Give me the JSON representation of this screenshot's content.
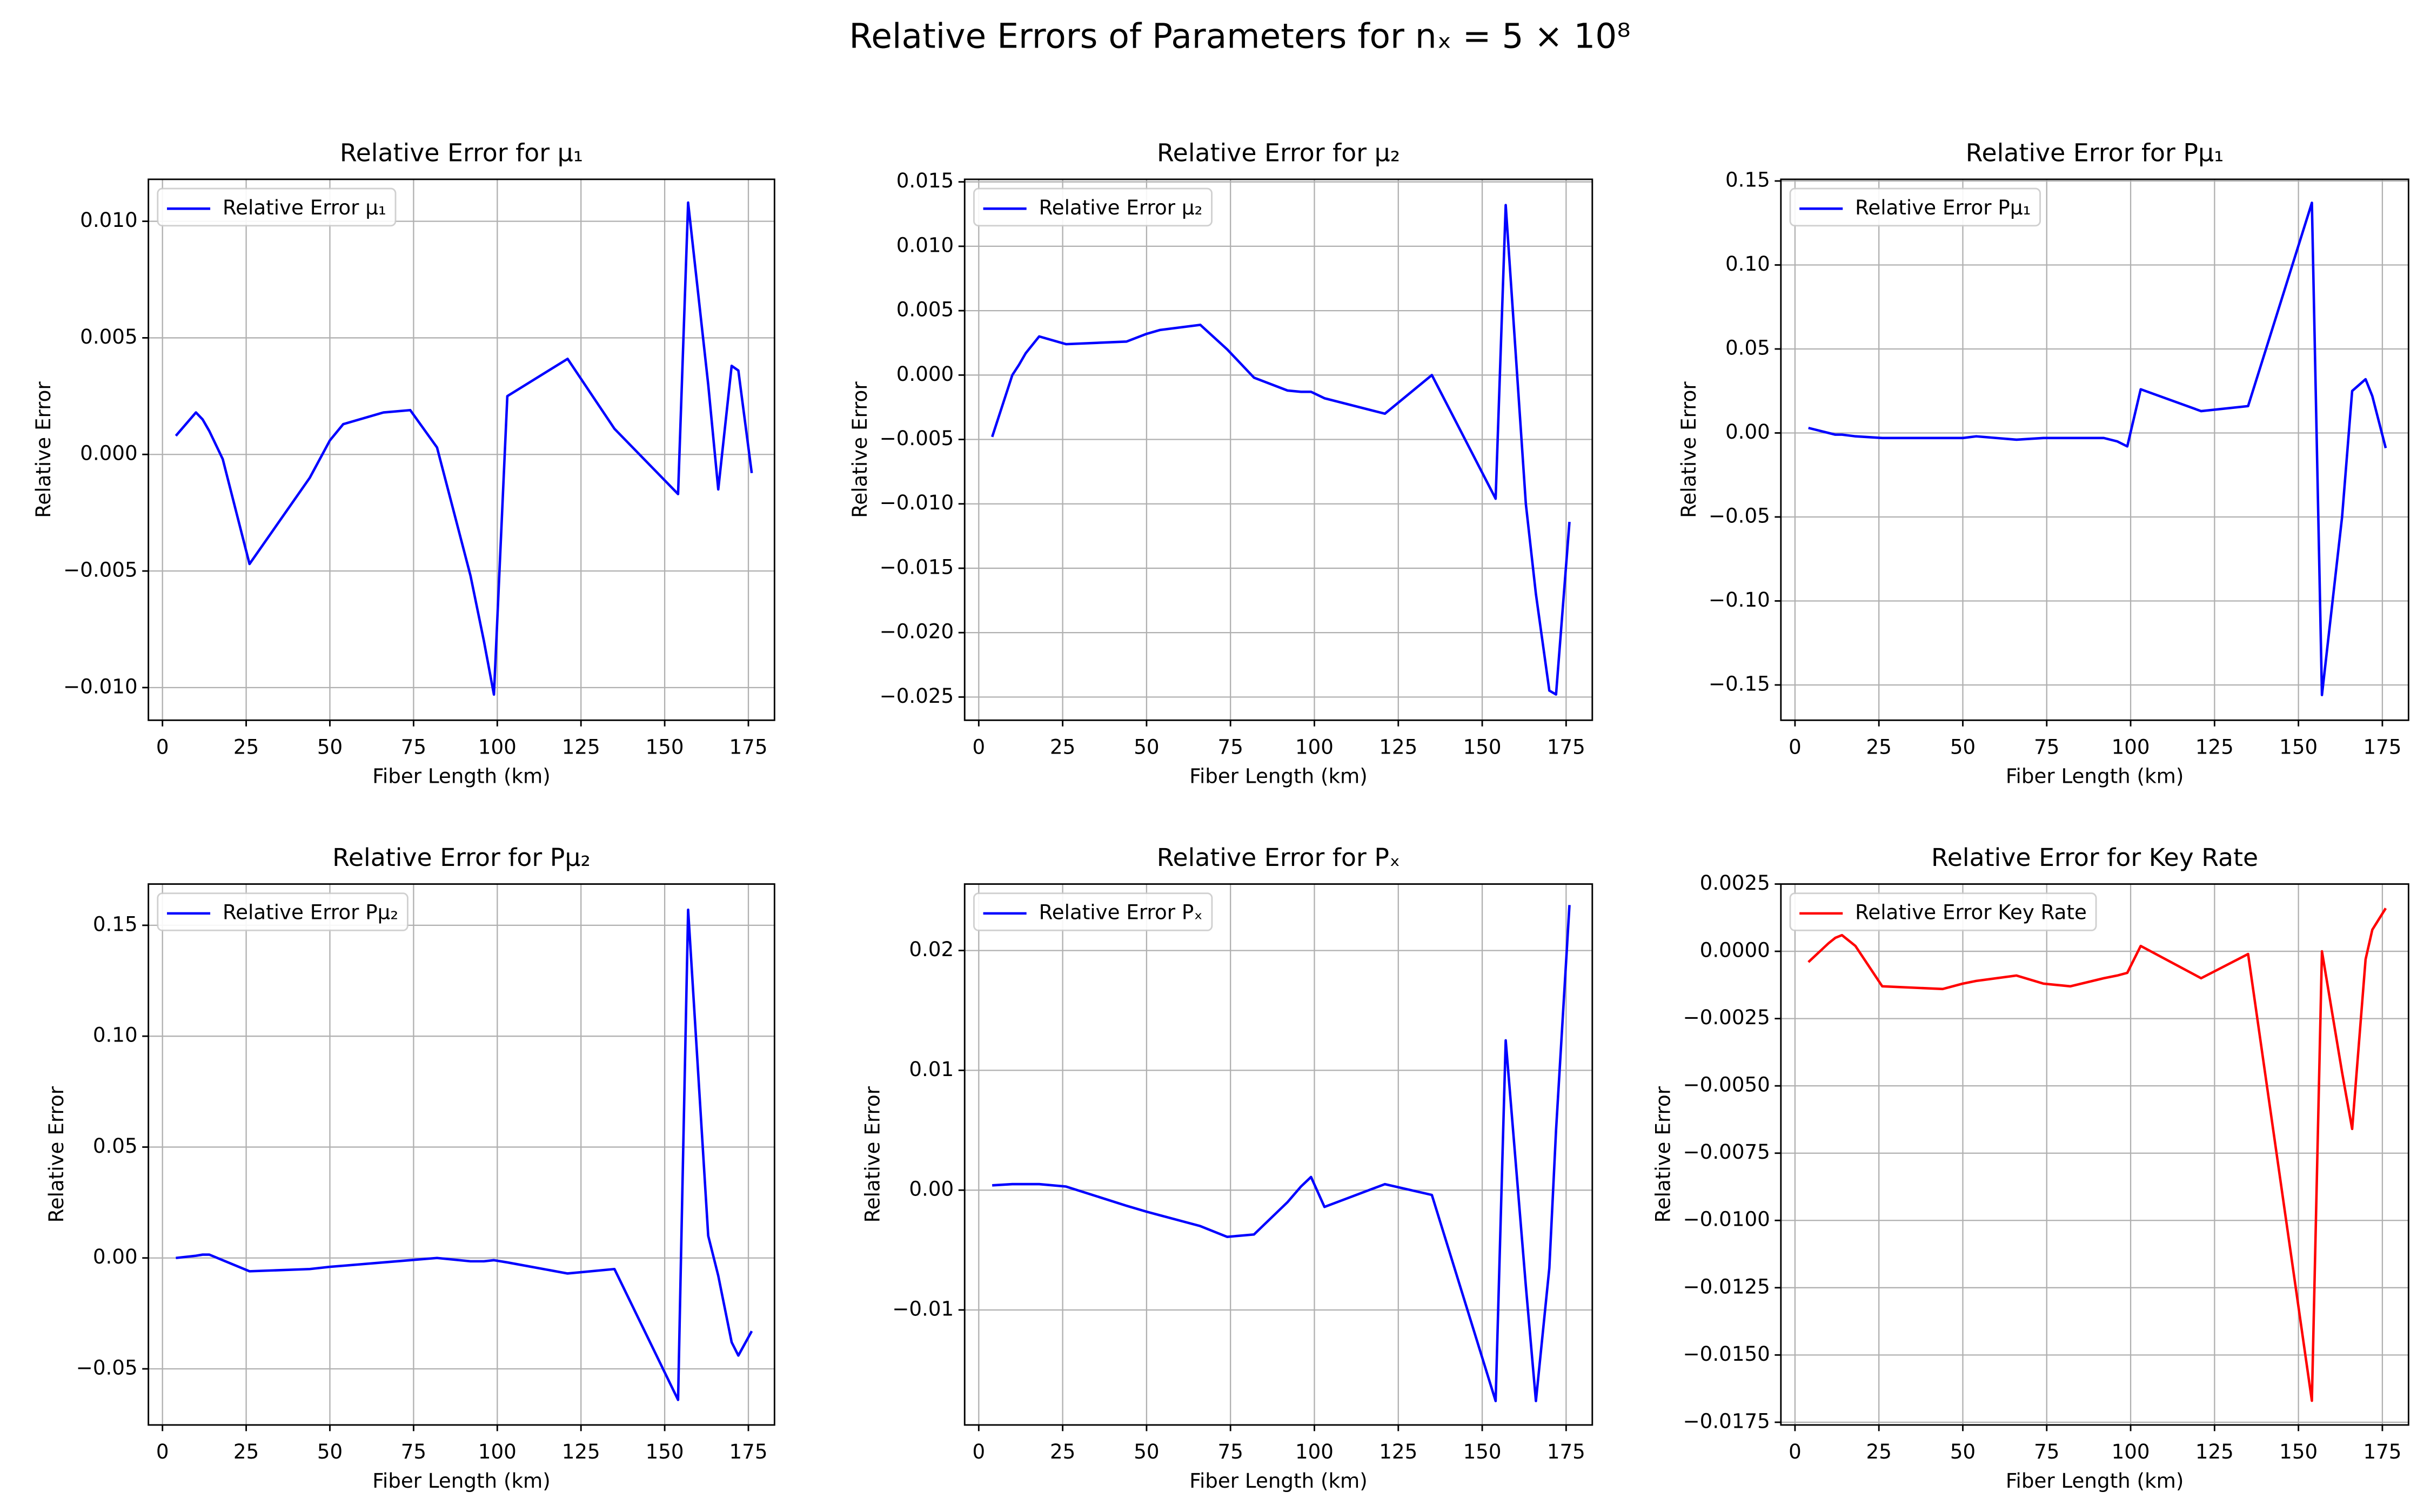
{
  "title": "Relative Errors of Parameters for nₓ = 5 × 10⁸",
  "chart_data": [
    {
      "type": "line",
      "title": "Relative Error for μ₁",
      "xlabel": "Fiber Length (km)",
      "ylabel": "Relative Error",
      "x": [
        4,
        10,
        12,
        14,
        18,
        26,
        44,
        50,
        54,
        66,
        74,
        82,
        92,
        96,
        99,
        103,
        121,
        135,
        154,
        157,
        163,
        166,
        170,
        172,
        176
      ],
      "series": [
        {
          "name": "Relative Error μ₁",
          "color": "#0000ff",
          "values": [
            0.0008,
            0.0018,
            0.0015,
            0.001,
            -0.0002,
            -0.0047,
            -0.001,
            0.0006,
            0.0013,
            0.0018,
            0.0019,
            0.0003,
            -0.0052,
            -0.008,
            -0.0103,
            0.0025,
            0.0041,
            0.0011,
            -0.0017,
            0.0108,
            0.003,
            -0.0015,
            0.0038,
            0.0036,
            -0.0008
          ]
        }
      ],
      "xlim": [
        -4.2,
        182.8
      ],
      "ylim": [
        -0.0114,
        0.0118
      ],
      "xticks": [
        0,
        25,
        50,
        75,
        100,
        125,
        150,
        175
      ],
      "yticks": [
        {
          "value": -0.01,
          "label": "−0.010"
        },
        {
          "value": -0.005,
          "label": "−0.005"
        },
        {
          "value": 0,
          "label": "0.000"
        },
        {
          "value": 0.005,
          "label": "0.005"
        },
        {
          "value": 0.01,
          "label": "0.010"
        }
      ],
      "grid": true,
      "legend": "upper left"
    },
    {
      "type": "line",
      "title": "Relative Error for μ₂",
      "xlabel": "Fiber Length (km)",
      "ylabel": "Relative Error",
      "x": [
        4,
        10,
        12,
        14,
        18,
        26,
        44,
        50,
        54,
        66,
        74,
        82,
        92,
        96,
        99,
        103,
        121,
        135,
        154,
        157,
        163,
        166,
        170,
        172,
        176
      ],
      "series": [
        {
          "name": "Relative Error μ₂",
          "color": "#0000ff",
          "values": [
            -0.0048,
            0,
            0.0008,
            0.0017,
            0.003,
            0.0024,
            0.0026,
            0.0032,
            0.0035,
            0.0039,
            0.002,
            -0.0002,
            -0.0012,
            -0.0013,
            -0.0013,
            -0.0018,
            -0.003,
            0,
            -0.0096,
            0.0132,
            -0.01,
            -0.017,
            -0.0245,
            -0.0248,
            -0.0114
          ]
        }
      ],
      "xlim": [
        -4.2,
        182.8
      ],
      "ylim": [
        -0.0268,
        0.0152
      ],
      "xticks": [
        0,
        25,
        50,
        75,
        100,
        125,
        150,
        175
      ],
      "yticks": [
        {
          "value": -0.025,
          "label": "−0.025"
        },
        {
          "value": -0.02,
          "label": "−0.020"
        },
        {
          "value": -0.015,
          "label": "−0.015"
        },
        {
          "value": -0.01,
          "label": "−0.010"
        },
        {
          "value": -0.005,
          "label": "−0.005"
        },
        {
          "value": 0,
          "label": "0.000"
        },
        {
          "value": 0.005,
          "label": "0.005"
        },
        {
          "value": 0.01,
          "label": "0.010"
        },
        {
          "value": 0.015,
          "label": "0.015"
        }
      ],
      "grid": true,
      "legend": "upper left"
    },
    {
      "type": "line",
      "title": "Relative Error for Pμ₁",
      "xlabel": "Fiber Length (km)",
      "ylabel": "Relative Error",
      "x": [
        4,
        10,
        12,
        14,
        18,
        26,
        44,
        50,
        54,
        66,
        74,
        82,
        92,
        96,
        99,
        103,
        121,
        135,
        154,
        157,
        163,
        166,
        170,
        172,
        176
      ],
      "series": [
        {
          "name": "Relative Error Pμ₁",
          "color": "#0000ff",
          "values": [
            0.003,
            0,
            -0.001,
            -0.001,
            -0.002,
            -0.003,
            -0.003,
            -0.003,
            -0.002,
            -0.004,
            -0.003,
            -0.003,
            -0.003,
            -0.005,
            -0.008,
            0.026,
            0.013,
            0.016,
            0.137,
            -0.156,
            -0.05,
            0.025,
            0.032,
            0.022,
            -0.009
          ]
        }
      ],
      "xlim": [
        -4.2,
        182.8
      ],
      "ylim": [
        -0.171,
        0.151
      ],
      "xticks": [
        0,
        25,
        50,
        75,
        100,
        125,
        150,
        175
      ],
      "yticks": [
        {
          "value": -0.15,
          "label": "−0.15"
        },
        {
          "value": -0.1,
          "label": "−0.10"
        },
        {
          "value": -0.05,
          "label": "−0.05"
        },
        {
          "value": 0,
          "label": "0.00"
        },
        {
          "value": 0.05,
          "label": "0.05"
        },
        {
          "value": 0.1,
          "label": "0.10"
        },
        {
          "value": 0.15,
          "label": "0.15"
        }
      ],
      "grid": true,
      "legend": "upper left"
    },
    {
      "type": "line",
      "title": "Relative Error for Pμ₂",
      "xlabel": "Fiber Length (km)",
      "ylabel": "Relative Error",
      "x": [
        4,
        10,
        12,
        14,
        18,
        26,
        44,
        50,
        54,
        66,
        74,
        82,
        92,
        96,
        99,
        103,
        121,
        135,
        154,
        157,
        163,
        166,
        170,
        172,
        176
      ],
      "series": [
        {
          "name": "Relative Error Pμ₂",
          "color": "#0000ff",
          "values": [
            0,
            0.001,
            0.0015,
            0.0015,
            -0.001,
            -0.006,
            -0.005,
            -0.004,
            -0.0035,
            -0.002,
            -0.001,
            0,
            -0.0015,
            -0.0015,
            -0.001,
            -0.002,
            -0.007,
            -0.005,
            -0.064,
            0.157,
            0.01,
            -0.008,
            -0.038,
            -0.044,
            -0.033
          ]
        }
      ],
      "xlim": [
        -4.2,
        182.8
      ],
      "ylim": [
        -0.0753,
        0.1686
      ],
      "xticks": [
        0,
        25,
        50,
        75,
        100,
        125,
        150,
        175
      ],
      "yticks": [
        {
          "value": -0.05,
          "label": "−0.05"
        },
        {
          "value": 0,
          "label": "0.00"
        },
        {
          "value": 0.05,
          "label": "0.05"
        },
        {
          "value": 0.1,
          "label": "0.10"
        },
        {
          "value": 0.15,
          "label": "0.15"
        }
      ],
      "grid": true,
      "legend": "upper left"
    },
    {
      "type": "line",
      "title": "Relative Error for Pₓ",
      "xlabel": "Fiber Length (km)",
      "ylabel": "Relative Error",
      "x": [
        4,
        10,
        12,
        14,
        18,
        26,
        44,
        50,
        54,
        66,
        74,
        82,
        92,
        96,
        99,
        103,
        121,
        135,
        154,
        157,
        163,
        166,
        170,
        172,
        176
      ],
      "series": [
        {
          "name": "Relative Error Pₓ",
          "color": "#0000ff",
          "values": [
            0.0004,
            0.0005,
            0.0005,
            0.0005,
            0.0005,
            0.0003,
            -0.0013,
            -0.0018,
            -0.0021,
            -0.003,
            -0.0039,
            -0.0037,
            -0.001,
            0.0003,
            0.0011,
            -0.0014,
            0.0005,
            -0.0004,
            -0.0176,
            0.0125,
            -0.008,
            -0.0176,
            -0.0065,
            0.005,
            0.0238
          ]
        }
      ],
      "xlim": [
        -4.2,
        182.8
      ],
      "ylim": [
        -0.0196,
        0.02555
      ],
      "xticks": [
        0,
        25,
        50,
        75,
        100,
        125,
        150,
        175
      ],
      "yticks": [
        {
          "value": -0.01,
          "label": "−0.01"
        },
        {
          "value": 0,
          "label": "0.00"
        },
        {
          "value": 0.01,
          "label": "0.01"
        },
        {
          "value": 0.02,
          "label": "0.02"
        }
      ],
      "grid": true,
      "legend": "upper left"
    },
    {
      "type": "line",
      "title": "Relative Error for Key Rate",
      "xlabel": "Fiber Length (km)",
      "ylabel": "Relative Error",
      "x": [
        4,
        10,
        12,
        14,
        18,
        26,
        44,
        50,
        54,
        66,
        74,
        82,
        92,
        96,
        99,
        103,
        121,
        135,
        154,
        157,
        163,
        166,
        170,
        172,
        176
      ],
      "series": [
        {
          "name": "Relative Error Key Rate",
          "color": "#ff0000",
          "values": [
            -0.0004,
            0.0003,
            0.0005,
            0.0006,
            0.0002,
            -0.0013,
            -0.0014,
            -0.0012,
            -0.0011,
            -0.0009,
            -0.0012,
            -0.0013,
            -0.001,
            -0.0009,
            -0.0008,
            0.0002,
            -0.001,
            -0.0001,
            -0.0167,
            0,
            -0.0045,
            -0.0066,
            -0.0003,
            0.0008,
            0.0016
          ]
        }
      ],
      "xlim": [
        -4.2,
        182.8
      ],
      "ylim": [
        -0.0176,
        0.0025
      ],
      "xticks": [
        0,
        25,
        50,
        75,
        100,
        125,
        150,
        175
      ],
      "yticks": [
        {
          "value": -0.0175,
          "label": "−0.0175"
        },
        {
          "value": -0.015,
          "label": "−0.0150"
        },
        {
          "value": -0.0125,
          "label": "−0.0125"
        },
        {
          "value": -0.01,
          "label": "−0.0100"
        },
        {
          "value": -0.0075,
          "label": "−0.0075"
        },
        {
          "value": -0.005,
          "label": "−0.0050"
        },
        {
          "value": -0.0025,
          "label": "−0.0025"
        },
        {
          "value": 0,
          "label": "0.0000"
        },
        {
          "value": 0.0025,
          "label": "0.0025"
        }
      ],
      "grid": true,
      "legend": "upper left"
    }
  ]
}
